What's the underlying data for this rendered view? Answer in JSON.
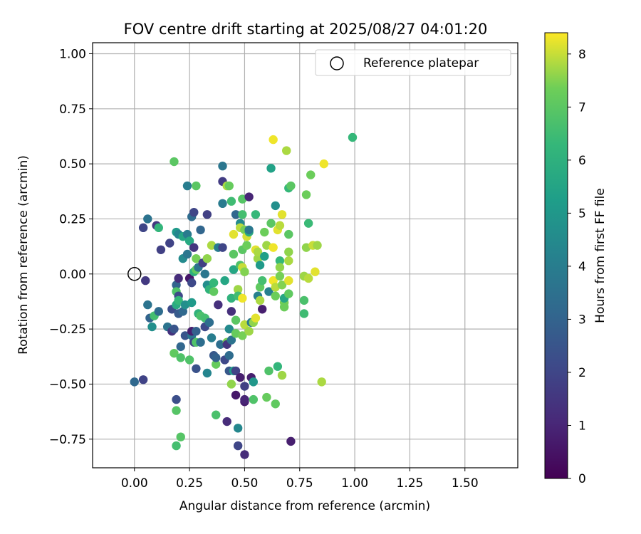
{
  "chart_data": {
    "type": "scatter",
    "title": "FOV centre drift starting at 2025/08/27 04:01:20",
    "xlabel": "Angular distance from reference (arcmin)",
    "ylabel": "Rotation from reference (arcmin)",
    "xlim": [
      -0.19,
      1.74
    ],
    "ylim": [
      -0.88,
      1.05
    ],
    "x_ticks": [
      0.0,
      0.25,
      0.5,
      0.75,
      1.0,
      1.25,
      1.5
    ],
    "x_tick_labels": [
      "0.00",
      "0.25",
      "0.50",
      "0.75",
      "1.00",
      "1.25",
      "1.50"
    ],
    "y_ticks": [
      -0.75,
      -0.5,
      -0.25,
      0.0,
      0.25,
      0.5,
      0.75,
      1.0
    ],
    "y_tick_labels": [
      "−0.75",
      "−0.50",
      "−0.25",
      "0.00",
      "0.25",
      "0.50",
      "0.75",
      "1.00"
    ],
    "grid": true,
    "legend": {
      "placement": "top-right",
      "label": "Reference platepar"
    },
    "reference_point": {
      "x": 0.0,
      "y": 0.0
    },
    "colorbar": {
      "label": "Hours from first FF file",
      "range": [
        0,
        8.4
      ],
      "ticks": [
        0,
        1,
        2,
        3,
        4,
        5,
        6,
        7,
        8
      ],
      "tick_labels": [
        "0",
        "1",
        "2",
        "3",
        "4",
        "5",
        "6",
        "7",
        "8"
      ],
      "colormap": "viridis"
    },
    "points": [
      [
        0.0,
        -0.49,
        3.2
      ],
      [
        0.04,
        -0.48,
        1.9
      ],
      [
        0.04,
        0.21,
        2.0
      ],
      [
        0.05,
        -0.03,
        1.6
      ],
      [
        0.06,
        0.25,
        3.6
      ],
      [
        0.06,
        -0.14,
        3.6
      ],
      [
        0.07,
        -0.2,
        3.0
      ],
      [
        0.08,
        -0.24,
        4.7
      ],
      [
        0.09,
        -0.19,
        6.6
      ],
      [
        0.1,
        0.22,
        1.6
      ],
      [
        0.11,
        0.21,
        6.2
      ],
      [
        0.11,
        -0.17,
        3.3
      ],
      [
        0.12,
        0.11,
        1.8
      ],
      [
        0.15,
        -0.24,
        3.6
      ],
      [
        0.16,
        0.14,
        1.9
      ],
      [
        0.17,
        -0.26,
        1.4
      ],
      [
        0.17,
        -0.16,
        2.2
      ],
      [
        0.18,
        -0.36,
        7.1
      ],
      [
        0.18,
        0.51,
        7.0
      ],
      [
        0.18,
        -0.25,
        2.5
      ],
      [
        0.19,
        -0.57,
        2.3
      ],
      [
        0.19,
        -0.62,
        6.9
      ],
      [
        0.19,
        -0.78,
        6.6
      ],
      [
        0.19,
        -0.05,
        3.0
      ],
      [
        0.19,
        0.19,
        5.1
      ],
      [
        0.19,
        -0.08,
        6.8
      ],
      [
        0.19,
        -0.14,
        5.8
      ],
      [
        0.2,
        -0.02,
        1.2
      ],
      [
        0.2,
        -0.1,
        2.1
      ],
      [
        0.2,
        -0.18,
        2.7
      ],
      [
        0.2,
        -0.12,
        6.3
      ],
      [
        0.2,
        0.18,
        4.3
      ],
      [
        0.21,
        -0.74,
        6.9
      ],
      [
        0.21,
        -0.38,
        6.8
      ],
      [
        0.21,
        -0.33,
        3.1
      ],
      [
        0.22,
        -0.17,
        3.2
      ],
      [
        0.22,
        0.07,
        4.5
      ],
      [
        0.22,
        0.17,
        5.6
      ],
      [
        0.23,
        -0.14,
        4.7
      ],
      [
        0.23,
        -0.28,
        2.5
      ],
      [
        0.24,
        0.09,
        3.7
      ],
      [
        0.24,
        0.4,
        4.0
      ],
      [
        0.24,
        0.18,
        3.9
      ],
      [
        0.25,
        -0.02,
        0.6
      ],
      [
        0.25,
        0.15,
        5.7
      ],
      [
        0.25,
        -0.39,
        6.8
      ],
      [
        0.26,
        -0.28,
        3.7
      ],
      [
        0.26,
        -0.13,
        5.1
      ],
      [
        0.26,
        -0.26,
        0.8
      ],
      [
        0.26,
        -0.04,
        2.1
      ],
      [
        0.26,
        0.26,
        3.3
      ],
      [
        0.27,
        0.28,
        2.0
      ],
      [
        0.27,
        0.12,
        1.5
      ],
      [
        0.27,
        0.01,
        6.0
      ],
      [
        0.27,
        -0.31,
        1.9
      ],
      [
        0.28,
        -0.26,
        2.9
      ],
      [
        0.28,
        -0.43,
        2.4
      ],
      [
        0.28,
        0.02,
        7.1
      ],
      [
        0.28,
        0.07,
        7.4
      ],
      [
        0.28,
        0.4,
        7.0
      ],
      [
        0.28,
        -0.31,
        6.8
      ],
      [
        0.29,
        0.03,
        3.6
      ],
      [
        0.29,
        -0.18,
        6.1
      ],
      [
        0.3,
        -0.31,
        3.4
      ],
      [
        0.3,
        -0.19,
        6.7
      ],
      [
        0.3,
        0.2,
        3.1
      ],
      [
        0.31,
        0.05,
        1.8
      ],
      [
        0.32,
        -0.24,
        2.1
      ],
      [
        0.32,
        0.0,
        3.7
      ],
      [
        0.32,
        -0.2,
        6.6
      ],
      [
        0.33,
        0.27,
        1.8
      ],
      [
        0.33,
        -0.45,
        4.3
      ],
      [
        0.33,
        -0.05,
        4.6
      ],
      [
        0.33,
        0.07,
        7.6
      ],
      [
        0.34,
        -0.07,
        6.1
      ],
      [
        0.34,
        -0.22,
        3.4
      ],
      [
        0.35,
        -0.29,
        4.0
      ],
      [
        0.35,
        0.13,
        7.8
      ],
      [
        0.36,
        -0.37,
        2.6
      ],
      [
        0.36,
        -0.04,
        6.3
      ],
      [
        0.36,
        -0.08,
        7.1
      ],
      [
        0.37,
        -0.41,
        7.2
      ],
      [
        0.37,
        -0.64,
        6.7
      ],
      [
        0.37,
        -0.38,
        2.9
      ],
      [
        0.38,
        0.12,
        4.0
      ],
      [
        0.38,
        -0.14,
        1.3
      ],
      [
        0.39,
        -0.32,
        3.4
      ],
      [
        0.4,
        0.49,
        3.7
      ],
      [
        0.4,
        0.42,
        1.7
      ],
      [
        0.4,
        0.12,
        2.0
      ],
      [
        0.4,
        0.32,
        3.9
      ],
      [
        0.41,
        -0.03,
        5.6
      ],
      [
        0.41,
        -0.39,
        2.1
      ],
      [
        0.42,
        -0.31,
        7.4
      ],
      [
        0.42,
        -0.67,
        1.2
      ],
      [
        0.42,
        -0.32,
        1.5
      ],
      [
        0.42,
        0.4,
        7.8
      ],
      [
        0.43,
        0.4,
        7.2
      ],
      [
        0.43,
        -0.25,
        4.5
      ],
      [
        0.43,
        -0.44,
        2.6
      ],
      [
        0.43,
        -0.37,
        3.3
      ],
      [
        0.44,
        0.33,
        6.5
      ],
      [
        0.44,
        -0.17,
        1.3
      ],
      [
        0.44,
        -0.11,
        6.1
      ],
      [
        0.44,
        -0.5,
        7.6
      ],
      [
        0.44,
        -0.3,
        3.6
      ],
      [
        0.45,
        0.02,
        5.6
      ],
      [
        0.45,
        0.09,
        7.0
      ],
      [
        0.45,
        -0.44,
        5.1
      ],
      [
        0.45,
        0.18,
        8.2
      ],
      [
        0.46,
        0.27,
        3.1
      ],
      [
        0.46,
        -0.21,
        7.0
      ],
      [
        0.46,
        -0.55,
        0.6
      ],
      [
        0.46,
        -0.44,
        1.9
      ],
      [
        0.46,
        -0.27,
        7.2
      ],
      [
        0.47,
        -0.7,
        4.4
      ],
      [
        0.47,
        -0.78,
        2.0
      ],
      [
        0.47,
        -0.07,
        7.7
      ],
      [
        0.47,
        -0.1,
        6.5
      ],
      [
        0.48,
        0.04,
        6.8
      ],
      [
        0.48,
        -0.47,
        0.8
      ],
      [
        0.48,
        0.23,
        4.5
      ],
      [
        0.48,
        0.21,
        7.9
      ],
      [
        0.49,
        0.27,
        6.6
      ],
      [
        0.49,
        0.03,
        8.0
      ],
      [
        0.49,
        -0.11,
        8.3
      ],
      [
        0.49,
        0.11,
        7.0
      ],
      [
        0.49,
        -0.28,
        7.4
      ],
      [
        0.49,
        0.34,
        6.9
      ],
      [
        0.5,
        -0.58,
        0.8
      ],
      [
        0.5,
        -0.51,
        1.8
      ],
      [
        0.5,
        0.01,
        7.5
      ],
      [
        0.5,
        -0.57,
        1.0
      ],
      [
        0.5,
        -0.82,
        1.2
      ],
      [
        0.5,
        0.2,
        7.4
      ],
      [
        0.5,
        -0.23,
        7.9
      ],
      [
        0.51,
        0.13,
        7.3
      ],
      [
        0.51,
        0.17,
        8.1
      ],
      [
        0.52,
        -0.26,
        7.7
      ],
      [
        0.52,
        0.19,
        5.8
      ],
      [
        0.52,
        0.35,
        1.0
      ],
      [
        0.52,
        0.2,
        3.8
      ],
      [
        0.53,
        -0.47,
        0.8
      ],
      [
        0.53,
        -0.22,
        3.8
      ],
      [
        0.54,
        -0.57,
        6.8
      ],
      [
        0.54,
        -0.49,
        5.0
      ],
      [
        0.54,
        -0.22,
        7.6
      ],
      [
        0.55,
        -0.2,
        8.2
      ],
      [
        0.55,
        0.11,
        8.2
      ],
      [
        0.55,
        0.27,
        6.3
      ],
      [
        0.56,
        -0.1,
        4.1
      ],
      [
        0.56,
        0.07,
        7.7
      ],
      [
        0.56,
        0.1,
        7.8
      ],
      [
        0.57,
        -0.06,
        7.1
      ],
      [
        0.57,
        0.04,
        5.1
      ],
      [
        0.57,
        -0.12,
        7.8
      ],
      [
        0.58,
        -0.16,
        0.8
      ],
      [
        0.58,
        -0.03,
        6.6
      ],
      [
        0.59,
        0.08,
        5.3
      ],
      [
        0.59,
        0.19,
        7.3
      ],
      [
        0.6,
        -0.56,
        7.2
      ],
      [
        0.6,
        0.13,
        7.7
      ],
      [
        0.61,
        -0.44,
        6.8
      ],
      [
        0.61,
        -0.08,
        4.1
      ],
      [
        0.62,
        0.48,
        5.4
      ],
      [
        0.62,
        0.23,
        7.0
      ],
      [
        0.63,
        0.61,
        8.3
      ],
      [
        0.63,
        -0.03,
        8.3
      ],
      [
        0.63,
        0.12,
        8.3
      ],
      [
        0.64,
        -0.06,
        7.9
      ],
      [
        0.64,
        0.31,
        4.7
      ],
      [
        0.64,
        -0.1,
        7.3
      ],
      [
        0.64,
        -0.59,
        7.1
      ],
      [
        0.65,
        -0.42,
        6.2
      ],
      [
        0.65,
        0.2,
        8.2
      ],
      [
        0.66,
        0.22,
        7.9
      ],
      [
        0.66,
        -0.01,
        7.4
      ],
      [
        0.66,
        0.06,
        6.3
      ],
      [
        0.66,
        0.03,
        7.6
      ],
      [
        0.67,
        -0.46,
        7.7
      ],
      [
        0.67,
        0.27,
        8.2
      ],
      [
        0.67,
        -0.05,
        7.5
      ],
      [
        0.68,
        -0.13,
        7.4
      ],
      [
        0.68,
        -0.11,
        5.6
      ],
      [
        0.68,
        -0.15,
        7.3
      ],
      [
        0.69,
        0.56,
        7.8
      ],
      [
        0.7,
        -0.03,
        8.2
      ],
      [
        0.7,
        0.1,
        7.6
      ],
      [
        0.7,
        0.18,
        7.0
      ],
      [
        0.7,
        -0.09,
        7.1
      ],
      [
        0.7,
        0.06,
        7.8
      ],
      [
        0.7,
        0.39,
        6.3
      ],
      [
        0.71,
        -0.76,
        0.8
      ],
      [
        0.71,
        0.4,
        7.0
      ],
      [
        0.77,
        -0.01,
        7.7
      ],
      [
        0.77,
        -0.12,
        6.7
      ],
      [
        0.77,
        -0.18,
        6.5
      ],
      [
        0.78,
        0.36,
        7.3
      ],
      [
        0.78,
        0.12,
        7.6
      ],
      [
        0.79,
        -0.02,
        7.9
      ],
      [
        0.79,
        0.23,
        6.4
      ],
      [
        0.8,
        0.45,
        7.3
      ],
      [
        0.81,
        0.13,
        8.0
      ],
      [
        0.82,
        0.01,
        8.2
      ],
      [
        0.83,
        0.13,
        7.7
      ],
      [
        0.85,
        -0.49,
        7.8
      ],
      [
        0.86,
        0.5,
        8.3
      ],
      [
        0.99,
        0.62,
        6.3
      ]
    ]
  }
}
